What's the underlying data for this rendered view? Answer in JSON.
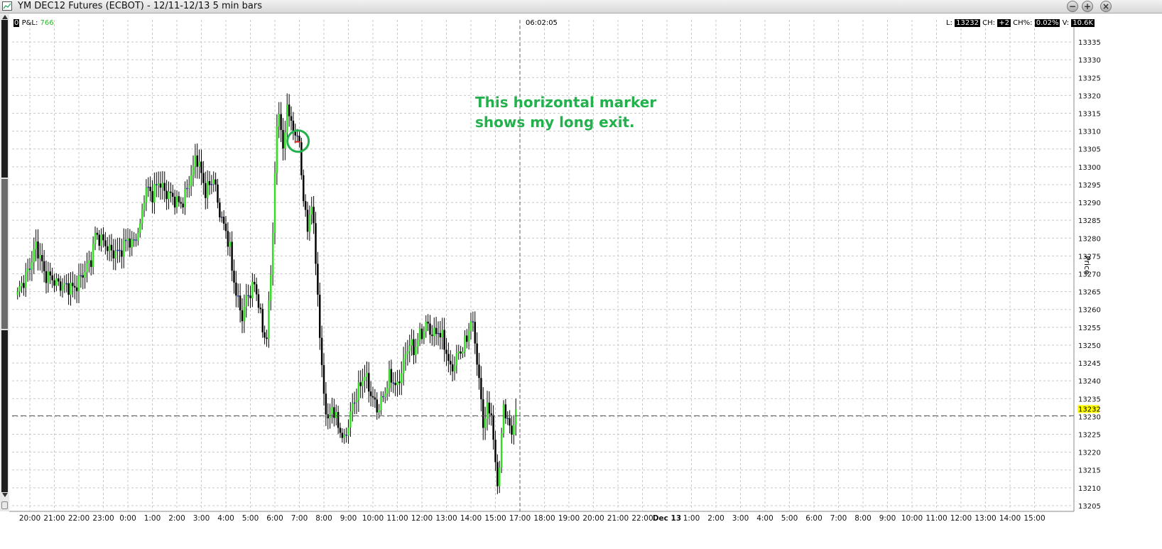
{
  "window": {
    "title": "YM DEC12 Futures (ECBOT) - 12/11-12/13 5 min bars",
    "buttons": [
      "minimize",
      "maximize",
      "close"
    ]
  },
  "header": {
    "pl_zero": "0",
    "pl_label": "P&L:",
    "pl_value": "766",
    "cursor_time": "06:02:05",
    "last_label": "L:",
    "last_value": "13232",
    "change_label": "CH:",
    "change_value": "+2",
    "change_pct_label": "CH%:",
    "change_pct_value": "0.02%",
    "volume_label": "V:",
    "volume_value": "10.6K"
  },
  "annotation": {
    "line1": "This horizontal marker",
    "line2": "shows my long exit.",
    "color": "#22b14c"
  },
  "colors": {
    "up": "#33dd22",
    "down": "#000000",
    "flat": "#1a2a99",
    "marker": "#dd2222",
    "last_badge": "#ffff00"
  },
  "chart_data": {
    "type": "candlestick",
    "ylabel": "Price",
    "ylim": [
      13203,
      13338
    ],
    "y_ticks": [
      13205,
      13210,
      13215,
      13220,
      13225,
      13230,
      13235,
      13240,
      13245,
      13250,
      13255,
      13260,
      13265,
      13270,
      13275,
      13280,
      13285,
      13290,
      13295,
      13300,
      13305,
      13310,
      13315,
      13320,
      13325,
      13330,
      13335
    ],
    "last_price": 13232,
    "last_price_level": 13230.2,
    "x_ticks": [
      "20:00",
      "21:00",
      "22:00",
      "23:00",
      "0:00",
      "1:00",
      "2:00",
      "3:00",
      "4:00",
      "5:00",
      "6:00",
      "7:00",
      "8:00",
      "9:00",
      "10:00",
      "11:00",
      "12:00",
      "13:00",
      "14:00",
      "15:00",
      "17:00",
      "18:00",
      "19:00",
      "20:00",
      "21:00",
      "22:00",
      "Dec 13",
      "1:00",
      "2:00",
      "3:00",
      "4:00",
      "5:00",
      "6:00",
      "7:00",
      "8:00",
      "9:00",
      "10:00",
      "11:00",
      "12:00",
      "13:00",
      "14:00",
      "15:00"
    ],
    "x_tick_index": [
      0,
      1,
      2,
      3,
      4,
      5,
      6,
      7,
      8,
      9,
      10,
      11,
      12,
      13,
      14,
      15,
      16,
      17,
      18,
      19,
      20,
      21,
      22,
      23,
      24,
      25,
      26,
      27,
      28,
      29,
      30,
      31,
      32,
      33,
      34,
      35,
      36,
      37,
      38,
      39,
      40,
      41
    ],
    "cursor_tick_index": 20,
    "bars_per_tick": 12,
    "start_offset_bars": -6,
    "price_path": [
      [
        0,
        13265
      ],
      [
        3,
        13268
      ],
      [
        6,
        13272
      ],
      [
        9,
        13278
      ],
      [
        12,
        13273
      ],
      [
        13,
        13270
      ],
      [
        16,
        13269
      ],
      [
        20,
        13267
      ],
      [
        28,
        13266
      ],
      [
        32,
        13270
      ],
      [
        36,
        13274
      ],
      [
        38,
        13281
      ],
      [
        42,
        13279
      ],
      [
        46,
        13276
      ],
      [
        50,
        13276
      ],
      [
        54,
        13280
      ],
      [
        56,
        13278
      ],
      [
        60,
        13283
      ],
      [
        62,
        13292
      ],
      [
        64,
        13294
      ],
      [
        66,
        13292
      ],
      [
        69,
        13296
      ],
      [
        72,
        13293
      ],
      [
        75,
        13292
      ],
      [
        78,
        13290
      ],
      [
        81,
        13290
      ],
      [
        84,
        13296
      ],
      [
        86,
        13299
      ],
      [
        87,
        13303
      ],
      [
        88,
        13302
      ],
      [
        90,
        13298
      ],
      [
        92,
        13293
      ],
      [
        94,
        13295
      ],
      [
        96,
        13297
      ],
      [
        98,
        13290
      ],
      [
        100,
        13285
      ],
      [
        102,
        13282
      ],
      [
        104,
        13277
      ],
      [
        105,
        13271
      ],
      [
        107,
        13265
      ],
      [
        108,
        13262
      ],
      [
        110,
        13258
      ],
      [
        112,
        13263
      ],
      [
        114,
        13265
      ],
      [
        116,
        13267
      ],
      [
        118,
        13262
      ],
      [
        120,
        13254
      ],
      [
        122,
        13252
      ],
      [
        124,
        13270
      ],
      [
        125,
        13283
      ],
      [
        126,
        13297
      ],
      [
        127,
        13311
      ],
      [
        128,
        13315
      ],
      [
        129,
        13312
      ],
      [
        130,
        13303
      ],
      [
        131,
        13310
      ],
      [
        132,
        13318
      ],
      [
        133,
        13315
      ],
      [
        134,
        13311
      ],
      [
        136,
        13310
      ],
      [
        138,
        13306
      ],
      [
        139,
        13298
      ],
      [
        140,
        13292
      ],
      [
        141,
        13286
      ],
      [
        142,
        13282
      ],
      [
        143,
        13287
      ],
      [
        144,
        13290
      ],
      [
        145,
        13282
      ],
      [
        147,
        13265
      ],
      [
        148,
        13252
      ],
      [
        149,
        13243
      ],
      [
        150,
        13237
      ],
      [
        151,
        13232
      ],
      [
        152,
        13228
      ],
      [
        154,
        13233
      ],
      [
        156,
        13229
      ],
      [
        158,
        13226
      ],
      [
        160,
        13223
      ],
      [
        162,
        13228
      ],
      [
        164,
        13233
      ],
      [
        166,
        13236
      ],
      [
        168,
        13239
      ],
      [
        170,
        13242
      ],
      [
        172,
        13238
      ],
      [
        174,
        13235
      ],
      [
        176,
        13232
      ],
      [
        178,
        13234
      ],
      [
        180,
        13237
      ],
      [
        182,
        13241
      ],
      [
        184,
        13240
      ],
      [
        186,
        13238
      ],
      [
        188,
        13243
      ],
      [
        190,
        13247
      ],
      [
        192,
        13251
      ],
      [
        194,
        13248
      ],
      [
        196,
        13252
      ],
      [
        198,
        13253
      ],
      [
        200,
        13256
      ],
      [
        202,
        13254
      ],
      [
        204,
        13253
      ],
      [
        206,
        13254
      ],
      [
        208,
        13252
      ],
      [
        210,
        13248
      ],
      [
        212,
        13243
      ],
      [
        214,
        13245
      ],
      [
        216,
        13248
      ],
      [
        218,
        13249
      ],
      [
        220,
        13252
      ],
      [
        222,
        13257
      ],
      [
        224,
        13252
      ],
      [
        225,
        13245
      ],
      [
        226,
        13240
      ],
      [
        227,
        13234
      ],
      [
        228,
        13228
      ],
      [
        230,
        13232
      ],
      [
        232,
        13231
      ],
      [
        233,
        13224
      ],
      [
        234,
        13215
      ],
      [
        235,
        13212
      ],
      [
        236,
        13216
      ],
      [
        237,
        13225
      ],
      [
        238,
        13232
      ],
      [
        240,
        13230
      ],
      [
        241,
        13226
      ],
      [
        242,
        13225
      ],
      [
        244,
        13232
      ]
    ]
  }
}
